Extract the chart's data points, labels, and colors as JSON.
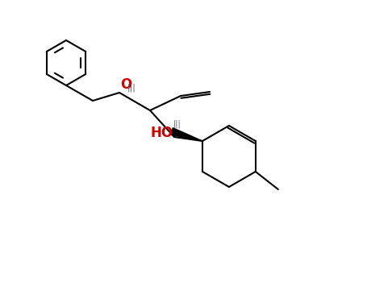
{
  "bg_color": "#ffffff",
  "bond_color": "#000000",
  "o_color": "#cc0000",
  "hash_color": "#555555",
  "figsize": [
    4.55,
    3.5
  ],
  "dpi": 100,
  "bond_lw": 1.5,
  "ring_r": 38,
  "benz_r": 28
}
